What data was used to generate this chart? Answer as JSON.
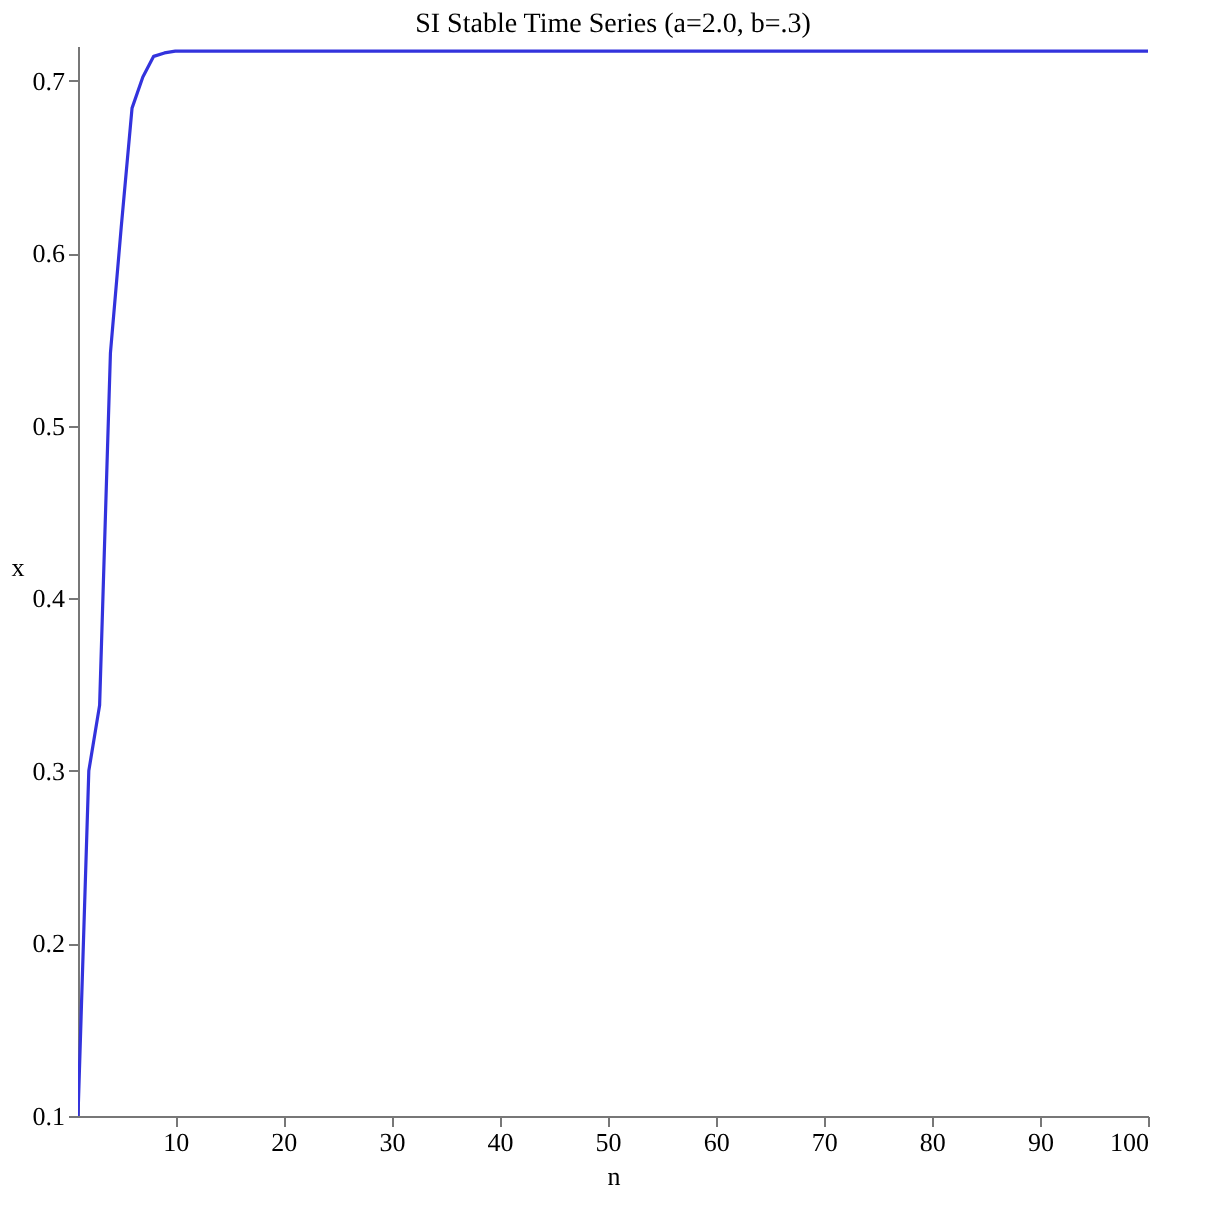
{
  "chart_data": {
    "type": "line",
    "title": "SI Stable Time Series (a=2.0, b=.3)",
    "xlabel": "n",
    "ylabel": "x",
    "x": [
      1,
      2,
      3,
      4,
      5,
      6,
      7,
      8,
      9,
      10,
      12,
      20,
      40,
      60,
      80,
      100
    ],
    "series": [
      {
        "color": "#3333dd",
        "values": [
          0.1,
          0.3,
          0.338,
          0.542,
          0.615,
          0.684,
          0.702,
          0.714,
          0.716,
          0.717,
          0.717,
          0.717,
          0.717,
          0.717,
          0.717,
          0.717
        ]
      }
    ],
    "xlim": [
      1,
      100
    ],
    "ylim": [
      0.1,
      0.72
    ],
    "xticks": [
      10,
      20,
      30,
      40,
      50,
      60,
      70,
      80,
      90,
      100
    ],
    "yticks": [
      0.1,
      0.2,
      0.3,
      0.4,
      0.5,
      0.6,
      0.7
    ],
    "grid": false,
    "legend": false
  }
}
